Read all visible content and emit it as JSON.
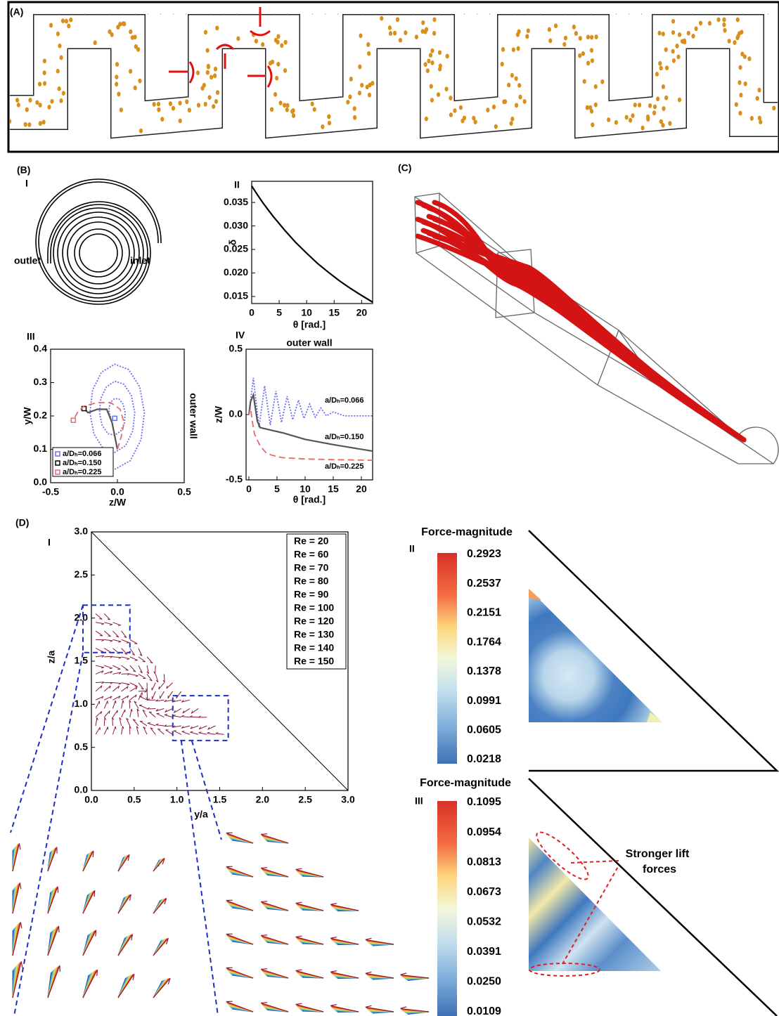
{
  "panel_labels": {
    "a": "(A)",
    "b": "(B)",
    "c": "(C)",
    "d": "(D)"
  },
  "b_i": {
    "label": "I",
    "outlet": "outlet",
    "inlet": "inlet"
  },
  "chart_data": [
    {
      "type": "line",
      "label": "II",
      "xlabel": "θ [rad.]",
      "ylabel": "δ",
      "xlim": [
        0,
        22
      ],
      "ylim": [
        0.0135,
        0.0395
      ],
      "xticks": [
        0,
        5,
        10,
        15,
        20
      ],
      "yticks": [
        0.015,
        {
          "value": 0.02,
          "label": "0.020"
        },
        0.025,
        {
          "value": 0.03,
          "label": "0.030"
        },
        0.035
      ],
      "series": [
        {
          "color": "#000000",
          "dash": "solid",
          "x": [
            0,
            1,
            2,
            3,
            4,
            5,
            6,
            8,
            10,
            12,
            14,
            16,
            18,
            20,
            22
          ],
          "values": [
            0.0385,
            0.0367,
            0.035,
            0.0334,
            0.0319,
            0.0305,
            0.0291,
            0.0265,
            0.0242,
            0.022,
            0.0201,
            0.0183,
            0.0167,
            0.0152,
            0.0138
          ]
        }
      ]
    },
    {
      "type": "line",
      "label": "III",
      "xlabel": "z/W",
      "ylabel": "y/W",
      "annotation": "outer wall",
      "legend": "lower left",
      "xlim": [
        -0.5,
        0.5
      ],
      "ylim": [
        0,
        0.4
      ],
      "xticks": [
        -0.5,
        {
          "value": 0,
          "label": "0.0"
        },
        0.5
      ],
      "yticks": [
        {
          "value": 0,
          "label": "0.0"
        },
        0.1,
        0.2,
        0.3,
        0.4
      ],
      "series": [
        {
          "name": "a/Dₕ=0.066",
          "color": "#6a6ef0",
          "dash": "dotted",
          "x": [
            -0.02,
            0.097,
            0.177,
            0.202,
            0.167,
            0.085,
            -0.02,
            -0.119,
            -0.186,
            -0.206,
            -0.176,
            -0.107,
            -0.02,
            0.061,
            0.115,
            0.13,
            0.105,
            0.049,
            -0.02,
            -0.083,
            -0.124,
            -0.134,
            -0.114,
            -0.071,
            -0.02,
            0.025,
            0.053,
            0.058,
            0.042,
            0.013,
            -0.02,
            -0.047,
            -0.062,
            -0.062,
            -0.051,
            -0.035,
            -0.02
          ],
          "values": [
            0.04,
            0.066,
            0.129,
            0.21,
            0.287,
            0.339,
            0.355,
            0.331,
            0.278,
            0.21,
            0.146,
            0.103,
            0.091,
            0.111,
            0.155,
            0.21,
            0.261,
            0.295,
            0.304,
            0.287,
            0.2525,
            0.21,
            0.172,
            0.147,
            0.142,
            0.155,
            0.18,
            0.21,
            0.2355,
            0.2505,
            0.2525,
            0.243,
            0.227,
            0.21,
            0.197,
            0.192,
            0.193
          ]
        },
        {
          "name": "a/Dₕ=0.150",
          "color": "#555555",
          "dash": "solid",
          "x": [
            0,
            -0.02,
            -0.04,
            -0.08,
            -0.15,
            -0.22,
            -0.25
          ],
          "values": [
            0.1,
            0.14,
            0.18,
            0.22,
            0.22,
            0.21,
            0.222
          ]
        },
        {
          "name": "a/Dₕ=0.225",
          "color": "#e86a6a",
          "dash": "dashed",
          "x": [
            0,
            0.03,
            0.05,
            0.02,
            -0.05,
            -0.15,
            -0.25,
            -0.3,
            -0.33
          ],
          "values": [
            0.1,
            0.14,
            0.18,
            0.22,
            0.24,
            0.24,
            0.23,
            0.21,
            0.187
          ]
        }
      ]
    },
    {
      "type": "line",
      "label": "IV",
      "title": "outer wall",
      "xlabel": "θ [rad.]",
      "ylabel": "z/W",
      "legend": "inline",
      "xlim": [
        -0.5,
        22
      ],
      "ylim": [
        -0.5,
        0.5
      ],
      "xticks": [
        0,
        5,
        10,
        15,
        20
      ],
      "yticks": [
        -0.5,
        {
          "value": 0,
          "label": "0.0"
        },
        0.5
      ],
      "series": [
        {
          "name": "a/Dₕ=0.066",
          "color": "#6a6ef0",
          "dash": "dotted",
          "x": [
            0,
            0.8,
            1.8,
            2.8,
            3.8,
            4.8,
            5.8,
            6.8,
            7.8,
            8.8,
            9.8,
            10.8,
            11.8,
            12.8,
            13.8,
            15,
            17,
            19,
            22
          ],
          "values": [
            0,
            0.28,
            -0.1,
            0.22,
            -0.08,
            0.18,
            -0.06,
            0.14,
            -0.04,
            0.11,
            -0.03,
            0.08,
            -0.02,
            0.05,
            -0.01,
            0.02,
            -0.01,
            -0.01,
            -0.01
          ]
        },
        {
          "name": "a/Dₕ=0.150",
          "color": "#555555",
          "dash": "solid",
          "x": [
            0,
            0.3,
            0.8,
            1.5,
            2,
            4,
            6,
            10,
            15,
            22
          ],
          "values": [
            0,
            0.1,
            0.15,
            -0.05,
            -0.1,
            -0.12,
            -0.14,
            -0.19,
            -0.23,
            -0.28
          ]
        },
        {
          "name": "a/Dₕ=0.225",
          "color": "#e86a6a",
          "dash": "dashed",
          "x": [
            0,
            0.3,
            0.6,
            1,
            2,
            3,
            4,
            6,
            10,
            15,
            22
          ],
          "values": [
            0,
            0.05,
            -0.05,
            -0.15,
            -0.24,
            -0.29,
            -0.31,
            -0.33,
            -0.34,
            -0.345,
            -0.35
          ]
        }
      ]
    },
    {
      "type": "quiver",
      "label": "I",
      "xlabel": "y/a",
      "ylabel": "z/a",
      "legend": "upper right",
      "xlim": [
        0,
        3
      ],
      "ylim": [
        0,
        3
      ],
      "xticks": [
        {
          "value": 0,
          "label": "0.0"
        },
        0.5,
        {
          "value": 1,
          "label": "1.0"
        },
        1.5,
        {
          "value": 2,
          "label": "2.0"
        },
        2.5,
        {
          "value": 3,
          "label": "3.0"
        }
      ],
      "yticks": [
        {
          "value": 0,
          "label": "0.0"
        },
        0.5,
        {
          "value": 1,
          "label": "1.0"
        },
        1.5,
        {
          "value": 2,
          "label": "2.0"
        },
        2.5,
        {
          "value": 3,
          "label": "3.0"
        }
      ],
      "series": [
        {
          "name": "Re = 20",
          "color": "#2b3b9a"
        },
        {
          "name": "Re = 60",
          "color": "#2f6ec0"
        },
        {
          "name": "Re = 70",
          "color": "#3aa0d8"
        },
        {
          "name": "Re = 80",
          "color": "#59c3c3"
        },
        {
          "name": "Re = 90",
          "color": "#8fd08a"
        },
        {
          "name": "Re = 100",
          "color": "#d8e060"
        },
        {
          "name": "Re = 120",
          "color": "#f6c340"
        },
        {
          "name": "Re = 130",
          "color": "#f08a30"
        },
        {
          "name": "Re = 140",
          "color": "#d8452a"
        },
        {
          "name": "Re = 150",
          "color": "#9a1830"
        }
      ]
    }
  ],
  "colorbars": [
    {
      "title": "Force-magnitude",
      "label": "II",
      "ticks": [
        "0.2923",
        "0.2537",
        "0.2151",
        "0.1764",
        "0.1378",
        "0.0991",
        "0.0605",
        "0.0218"
      ]
    },
    {
      "title": "Force-magnitude",
      "label": "III",
      "ticks": [
        "0.1095",
        "0.0954",
        "0.0813",
        "0.0673",
        "0.0532",
        "0.0391",
        "0.0250",
        "0.0109"
      ]
    }
  ],
  "annotation": [
    "Stronger lift",
    "forces"
  ]
}
